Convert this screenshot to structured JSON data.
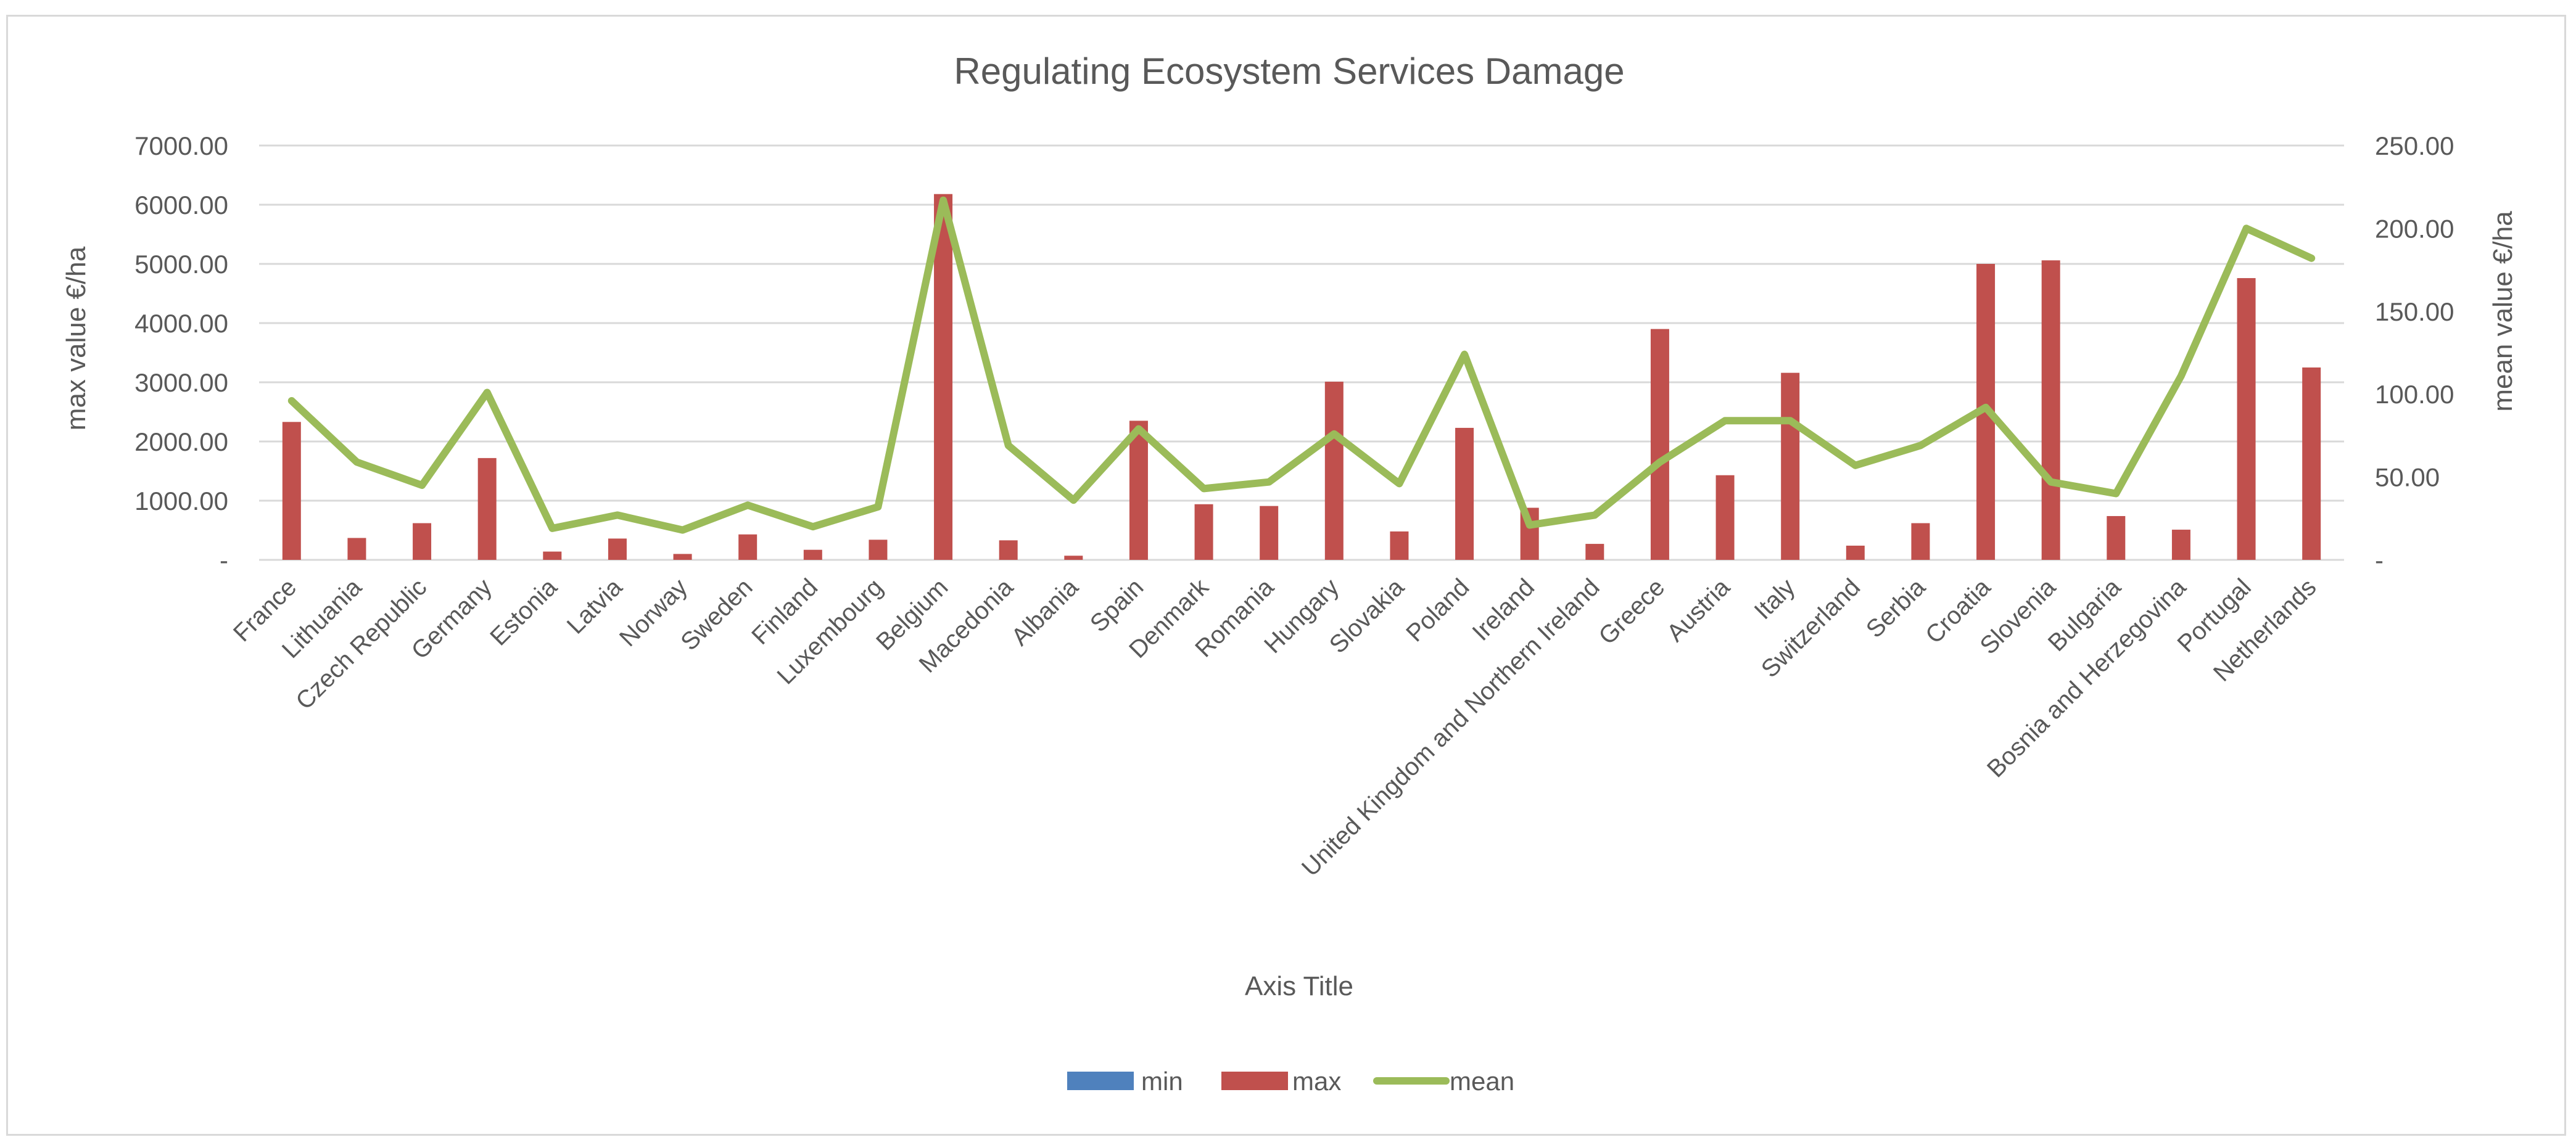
{
  "chart_data": {
    "type": "bar+line",
    "title": "Regulating Ecosystem Services Damage",
    "xlabel": "Axis Title",
    "ylabel_left": "max value  €/ha",
    "ylabel_right": "mean value €/ha",
    "ylim_left": [
      0,
      7000
    ],
    "ylim_right": [
      0,
      250
    ],
    "yticks_left": [
      "-",
      "1000.00",
      "2000.00",
      "3000.00",
      "4000.00",
      "5000.00",
      "6000.00",
      "7000.00"
    ],
    "yticks_right": [
      "-",
      "50.00",
      "100.00",
      "150.00",
      "200.00",
      "250.00"
    ],
    "grid": true,
    "legend_position": "bottom",
    "categories": [
      "France",
      "Lithuania",
      "Czech Republic",
      "Germany",
      "Estonia",
      "Latvia",
      "Norway",
      "Sweden",
      "Finland",
      "Luxembourg",
      "Belgium",
      "Macedonia",
      "Albania",
      "Spain",
      "Denmark",
      "Romania",
      "Hungary",
      "Slovakia",
      "Poland",
      "Ireland",
      "United Kingdom and Northern Ireland",
      "Greece",
      "Austria",
      "Italy",
      "Switzerland",
      "Serbia",
      "Croatia",
      "Slovenia",
      "Bulgaria",
      "Bosnia and Herzegovina",
      "Portugal",
      "Netherlands"
    ],
    "series": [
      {
        "name": "min",
        "kind": "bar",
        "axis": "left",
        "color": "#4f81bd",
        "values": [
          0,
          0,
          0,
          0,
          0,
          0,
          0,
          0,
          0,
          0,
          0,
          0,
          0,
          0,
          0,
          0,
          0,
          0,
          0,
          0,
          0,
          0,
          0,
          0,
          0,
          0,
          0,
          0,
          0,
          0,
          0,
          0
        ]
      },
      {
        "name": "max",
        "kind": "bar",
        "axis": "left",
        "color": "#c0504d",
        "values": [
          2330,
          370,
          620,
          1720,
          140,
          360,
          100,
          430,
          170,
          340,
          6180,
          330,
          70,
          2350,
          940,
          910,
          3010,
          480,
          2230,
          880,
          270,
          3900,
          1430,
          3160,
          240,
          620,
          5000,
          5060,
          740,
          510,
          4760,
          3250
        ]
      },
      {
        "name": "mean",
        "kind": "line",
        "axis": "right",
        "color": "#9bbb59",
        "values": [
          96,
          59,
          45,
          101,
          19,
          27,
          18,
          33,
          20,
          32,
          217,
          69,
          36,
          79,
          43,
          47,
          76,
          46,
          124,
          21,
          27,
          59,
          84,
          84,
          57,
          69,
          92,
          47,
          40,
          111,
          200,
          182
        ]
      }
    ]
  }
}
